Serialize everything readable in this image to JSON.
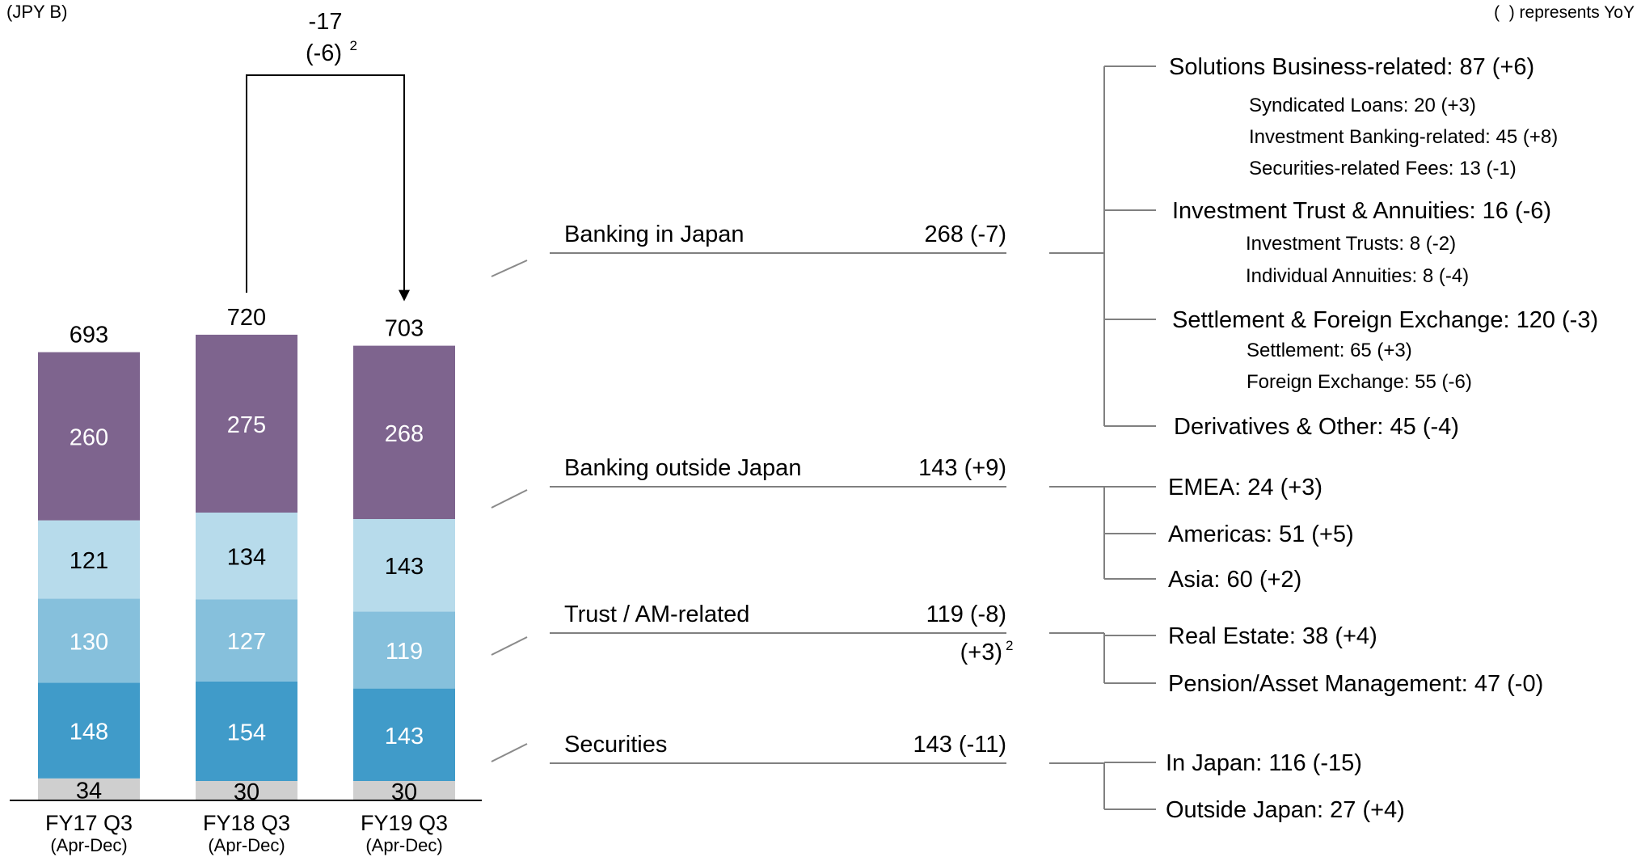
{
  "unit_note": "(JPY B)",
  "yoy_note": "(  ) represents YoY",
  "colors": {
    "purple": "#7e648e",
    "lightblue": "#b7dbeb",
    "midblue": "#86c0dc",
    "blue": "#409bc9",
    "gray": "#cfcfcf",
    "line": "#808080"
  },
  "chart_data": {
    "type": "bar",
    "stacked": true,
    "categories": [
      "FY17 Q3",
      "FY18 Q3",
      "FY19 Q3"
    ],
    "subcategories": [
      "(Apr-Dec)",
      "(Apr-Dec)",
      "(Apr-Dec)"
    ],
    "totals": [
      "693",
      "720",
      "703"
    ],
    "series": [
      {
        "key": "gray",
        "values": [
          34,
          30,
          30
        ]
      },
      {
        "key": "blue",
        "values": [
          148,
          154,
          143
        ]
      },
      {
        "key": "midblue",
        "values": [
          130,
          127,
          119
        ]
      },
      {
        "key": "lightblue",
        "values": [
          121,
          134,
          143
        ]
      },
      {
        "key": "purple",
        "values": [
          260,
          275,
          268
        ]
      }
    ],
    "change": {
      "value": "-17",
      "sub": "(-6)",
      "sup": "2"
    }
  },
  "segments": [
    {
      "name": "Banking in Japan",
      "value": "268 (-7)",
      "items": [
        {
          "label": "Solutions Business-related: 87 (+6)",
          "subs": [
            "Syndicated Loans: 20 (+3)",
            "Investment Banking-related: 45 (+8)",
            "Securities-related Fees: 13 (-1)"
          ]
        },
        {
          "label": "Investment Trust & Annuities: 16 (-6)",
          "subs": [
            "Investment Trusts: 8 (-2)",
            "Individual Annuities: 8 (-4)"
          ]
        },
        {
          "label": "Settlement & Foreign Exchange: 120 (-3)",
          "subs": [
            "Settlement: 65 (+3)",
            "Foreign Exchange: 55 (-6)"
          ]
        },
        {
          "label": "Derivatives & Other: 45 (-4)",
          "subs": []
        }
      ]
    },
    {
      "name": "Banking outside Japan",
      "value": "143 (+9)",
      "items": [
        {
          "label": "EMEA: 24 (+3)",
          "subs": []
        },
        {
          "label": "Americas: 51 (+5)",
          "subs": []
        },
        {
          "label": "Asia: 60 (+2)",
          "subs": []
        }
      ]
    },
    {
      "name": "Trust / AM-related",
      "value": "119 (-8)",
      "note": "(+3)",
      "note_sup": "2",
      "items": [
        {
          "label": "Real Estate: 38 (+4)",
          "subs": []
        },
        {
          "label": "Pension/Asset Management: 47 (-0)",
          "subs": []
        }
      ]
    },
    {
      "name": "Securities",
      "value": "143 (-11)",
      "items": [
        {
          "label": "In Japan: 116 (-15)",
          "subs": []
        },
        {
          "label": "Outside Japan: 27 (+4)",
          "subs": []
        }
      ]
    }
  ]
}
